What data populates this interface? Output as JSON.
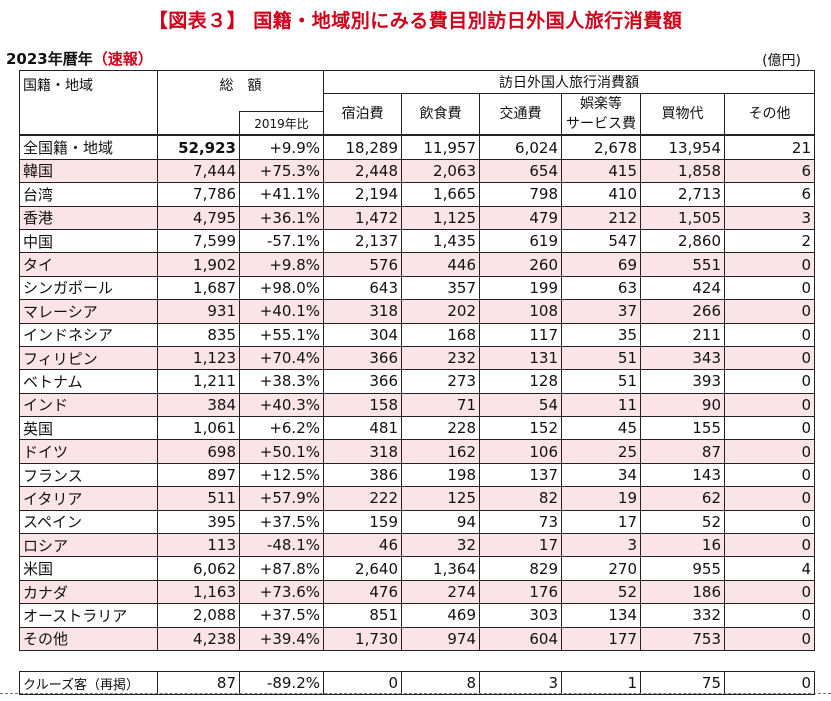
{
  "title": "【図表３】 国籍・地域別にみる費目別訪日外国人旅行消費額",
  "subtitle": {
    "year": "2023年暦年",
    "note": "（速報）"
  },
  "unit": "(億円)",
  "header": {
    "nationality": "国籍・地域",
    "total": "総　額",
    "vs2019": "2019年比",
    "group": "訪日外国人旅行消費額",
    "categories": [
      "宿泊費",
      "飲食費",
      "交通費",
      "娯楽等\nサービス費",
      "買物代",
      "その他"
    ]
  },
  "rows": [
    {
      "name": "全国籍・地域",
      "total": "52,923",
      "ratio": "+9.9%",
      "accom": "18,289",
      "food": "11,957",
      "transport": "6,024",
      "entertain": "2,678",
      "shopping": "13,954",
      "other": "21"
    },
    {
      "name": "韓国",
      "total": "7,444",
      "ratio": "+75.3%",
      "accom": "2,448",
      "food": "2,063",
      "transport": "654",
      "entertain": "415",
      "shopping": "1,858",
      "other": "6"
    },
    {
      "name": "台湾",
      "total": "7,786",
      "ratio": "+41.1%",
      "accom": "2,194",
      "food": "1,665",
      "transport": "798",
      "entertain": "410",
      "shopping": "2,713",
      "other": "6"
    },
    {
      "name": "香港",
      "total": "4,795",
      "ratio": "+36.1%",
      "accom": "1,472",
      "food": "1,125",
      "transport": "479",
      "entertain": "212",
      "shopping": "1,505",
      "other": "3"
    },
    {
      "name": "中国",
      "total": "7,599",
      "ratio": "-57.1%",
      "accom": "2,137",
      "food": "1,435",
      "transport": "619",
      "entertain": "547",
      "shopping": "2,860",
      "other": "2"
    },
    {
      "name": "タイ",
      "total": "1,902",
      "ratio": "+9.8%",
      "accom": "576",
      "food": "446",
      "transport": "260",
      "entertain": "69",
      "shopping": "551",
      "other": "0"
    },
    {
      "name": "シンガポール",
      "total": "1,687",
      "ratio": "+98.0%",
      "accom": "643",
      "food": "357",
      "transport": "199",
      "entertain": "63",
      "shopping": "424",
      "other": "0"
    },
    {
      "name": "マレーシア",
      "total": "931",
      "ratio": "+40.1%",
      "accom": "318",
      "food": "202",
      "transport": "108",
      "entertain": "37",
      "shopping": "266",
      "other": "0"
    },
    {
      "name": "インドネシア",
      "total": "835",
      "ratio": "+55.1%",
      "accom": "304",
      "food": "168",
      "transport": "117",
      "entertain": "35",
      "shopping": "211",
      "other": "0"
    },
    {
      "name": "フィリピン",
      "total": "1,123",
      "ratio": "+70.4%",
      "accom": "366",
      "food": "232",
      "transport": "131",
      "entertain": "51",
      "shopping": "343",
      "other": "0"
    },
    {
      "name": "ベトナム",
      "total": "1,211",
      "ratio": "+38.3%",
      "accom": "366",
      "food": "273",
      "transport": "128",
      "entertain": "51",
      "shopping": "393",
      "other": "0"
    },
    {
      "name": "インド",
      "total": "384",
      "ratio": "+40.3%",
      "accom": "158",
      "food": "71",
      "transport": "54",
      "entertain": "11",
      "shopping": "90",
      "other": "0"
    },
    {
      "name": "英国",
      "total": "1,061",
      "ratio": "+6.2%",
      "accom": "481",
      "food": "228",
      "transport": "152",
      "entertain": "45",
      "shopping": "155",
      "other": "0"
    },
    {
      "name": "ドイツ",
      "total": "698",
      "ratio": "+50.1%",
      "accom": "318",
      "food": "162",
      "transport": "106",
      "entertain": "25",
      "shopping": "87",
      "other": "0"
    },
    {
      "name": "フランス",
      "total": "897",
      "ratio": "+12.5%",
      "accom": "386",
      "food": "198",
      "transport": "137",
      "entertain": "34",
      "shopping": "143",
      "other": "0"
    },
    {
      "name": "イタリア",
      "total": "511",
      "ratio": "+57.9%",
      "accom": "222",
      "food": "125",
      "transport": "82",
      "entertain": "19",
      "shopping": "62",
      "other": "0"
    },
    {
      "name": "スペイン",
      "total": "395",
      "ratio": "+37.5%",
      "accom": "159",
      "food": "94",
      "transport": "73",
      "entertain": "17",
      "shopping": "52",
      "other": "0"
    },
    {
      "name": "ロシア",
      "total": "113",
      "ratio": "-48.1%",
      "accom": "46",
      "food": "32",
      "transport": "17",
      "entertain": "3",
      "shopping": "16",
      "other": "0"
    },
    {
      "name": "米国",
      "total": "6,062",
      "ratio": "+87.8%",
      "accom": "2,640",
      "food": "1,364",
      "transport": "829",
      "entertain": "270",
      "shopping": "955",
      "other": "4"
    },
    {
      "name": "カナダ",
      "total": "1,163",
      "ratio": "+73.6%",
      "accom": "476",
      "food": "274",
      "transport": "176",
      "entertain": "52",
      "shopping": "186",
      "other": "0"
    },
    {
      "name": "オーストラリア",
      "total": "2,088",
      "ratio": "+37.5%",
      "accom": "851",
      "food": "469",
      "transport": "303",
      "entertain": "134",
      "shopping": "332",
      "other": "0"
    },
    {
      "name": "その他",
      "total": "4,238",
      "ratio": "+39.4%",
      "accom": "1,730",
      "food": "974",
      "transport": "604",
      "entertain": "177",
      "shopping": "753",
      "other": "0"
    }
  ],
  "cruise": {
    "name": "クルーズ客（再掲）",
    "total": "87",
    "ratio": "-89.2%",
    "accom": "0",
    "food": "8",
    "transport": "3",
    "entertain": "1",
    "shopping": "75",
    "other": "0"
  },
  "colors": {
    "title": "#d0021b",
    "highlight_row": "#fbe4e8",
    "border": "#222222"
  }
}
